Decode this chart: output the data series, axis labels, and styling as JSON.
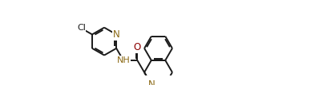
{
  "bg_color": "#ffffff",
  "bond_color": "#1a1a1a",
  "N_color": "#8B6914",
  "O_color": "#8B0000",
  "Cl_color": "#1a1a1a",
  "bond_lw": 1.4,
  "font_size": 7.5,
  "figsize": [
    3.98,
    1.07
  ],
  "dpi": 100,
  "xlim": [
    -5.5,
    6.0
  ],
  "ylim": [
    -1.6,
    1.8
  ]
}
